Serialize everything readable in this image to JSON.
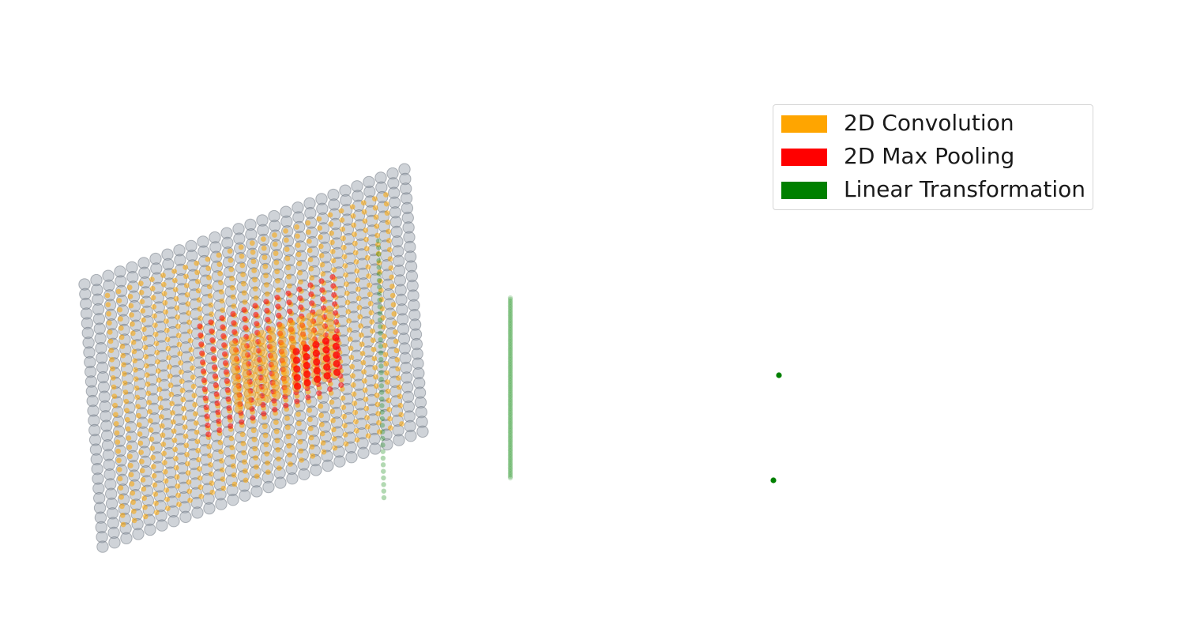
{
  "colors": {
    "input_neuron": "#8c95a1",
    "convolution": "#ffa500",
    "max_pooling": "#ff0000",
    "linear": "#008000",
    "background": "#ffffff"
  },
  "layers": [
    {
      "id": "input",
      "kind": "input",
      "rows": 28,
      "cols": 28
    },
    {
      "id": "conv",
      "kind": "convolution",
      "rows": 26,
      "cols": 26
    },
    {
      "id": "pool-outline",
      "kind": "max_pooling",
      "rows": 13,
      "cols": 13
    },
    {
      "id": "conv-inner",
      "kind": "convolution",
      "rows": 11,
      "cols": 11
    },
    {
      "id": "pool-inner",
      "kind": "max_pooling",
      "rows": 5,
      "cols": 5
    },
    {
      "id": "linear-1",
      "kind": "linear",
      "units": 40
    },
    {
      "id": "linear-2",
      "kind": "linear",
      "units": 120
    },
    {
      "id": "linear-3",
      "kind": "linear",
      "units": 1
    },
    {
      "id": "linear-4",
      "kind": "linear",
      "units": 1
    }
  ],
  "legend": {
    "items": [
      {
        "label": "2D Convolution",
        "color": "#ffa500"
      },
      {
        "label": "2D Max Pooling",
        "color": "#ff0000"
      },
      {
        "label": "Linear Transformation",
        "color": "#008000"
      }
    ]
  }
}
